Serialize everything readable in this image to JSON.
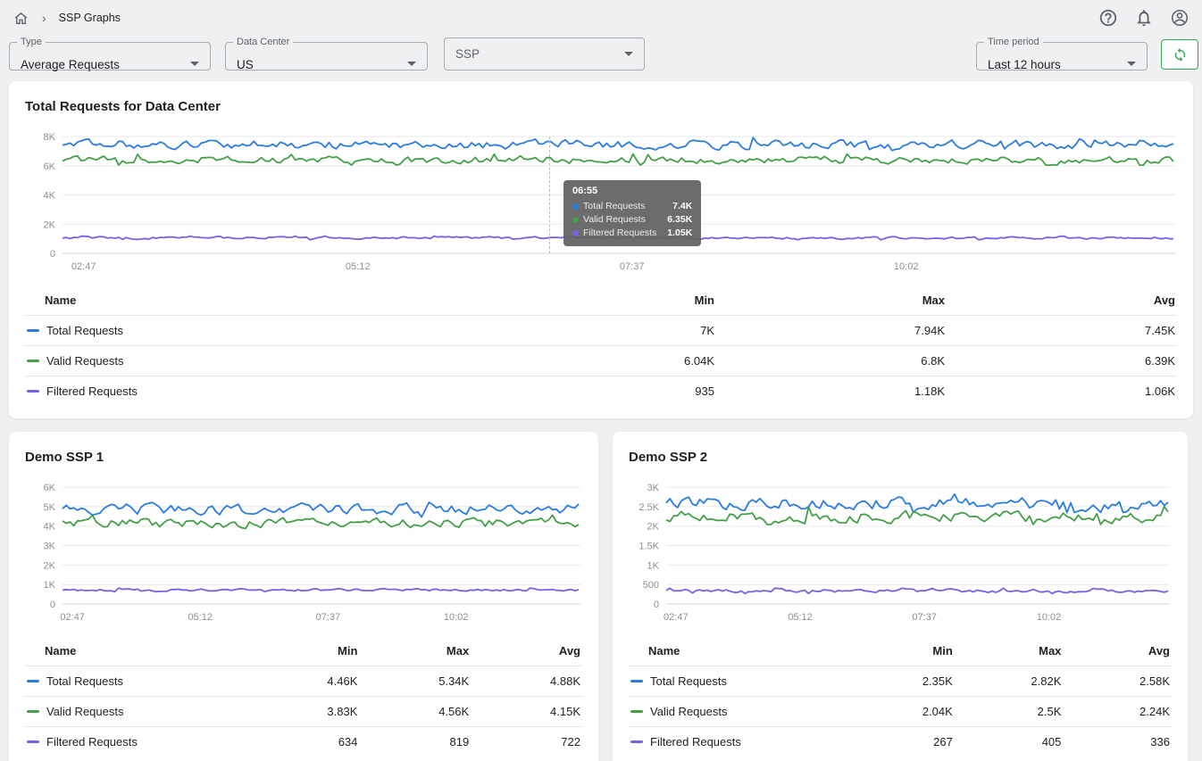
{
  "colors": {
    "blue": "#2b7ce0",
    "green": "#43a047",
    "purple": "#7d5fe3",
    "accent": "#1a73e8",
    "refresh_green": "#34a853",
    "icon_gray": "#5f6368"
  },
  "breadcrumb": {
    "page": "SSP Graphs"
  },
  "filters": {
    "type": {
      "label": "Type",
      "value": "Average Requests"
    },
    "data_center": {
      "label": "Data Center",
      "value": "US"
    },
    "ssp": {
      "placeholder": "SSP"
    },
    "time_period": {
      "label": "Time period",
      "value": "Last 12 hours"
    }
  },
  "table_headers": {
    "name": "Name",
    "min": "Min",
    "max": "Max",
    "avg": "Avg"
  },
  "chart_data": [
    {
      "type": "line",
      "title": "Total Requests for Data Center",
      "x_ticks": [
        "02:47",
        "05:12",
        "07:37",
        "10:02"
      ],
      "y_ticks": [
        {
          "label": "8K",
          "v": 8000
        },
        {
          "label": "6K",
          "v": 6000
        },
        {
          "label": "4K",
          "v": 4000
        },
        {
          "label": "2K",
          "v": 2000
        },
        {
          "label": "0",
          "v": 0
        }
      ],
      "ylim": [
        0,
        8400
      ],
      "grid": true,
      "legend_position": "table-below",
      "series": [
        {
          "name": "Total Requests",
          "color": "blue",
          "min": 7000,
          "max": 7940,
          "avg": 7450
        },
        {
          "name": "Valid Requests",
          "color": "green",
          "min": 6040,
          "max": 6800,
          "avg": 6390
        },
        {
          "name": "Filtered Requests",
          "color": "purple",
          "min": 935,
          "max": 1180,
          "avg": 1060
        }
      ],
      "table": [
        {
          "name": "Total Requests",
          "color": "blue",
          "min": "7K",
          "max": "7.94K",
          "avg": "7.45K"
        },
        {
          "name": "Valid Requests",
          "color": "green",
          "min": "6.04K",
          "max": "6.8K",
          "avg": "6.39K"
        },
        {
          "name": "Filtered Requests",
          "color": "purple",
          "min": "935",
          "max": "1.18K",
          "avg": "1.06K"
        }
      ],
      "hover": {
        "frac": 0.437,
        "time": "06:55",
        "rows": [
          {
            "name": "Total Requests",
            "color": "blue",
            "value": "7.4K"
          },
          {
            "name": "Valid Requests",
            "color": "green",
            "value": "6.35K"
          },
          {
            "name": "Filtered Requests",
            "color": "purple",
            "value": "1.05K"
          }
        ]
      }
    },
    {
      "type": "line",
      "title": "Demo SSP 1",
      "x_ticks": [
        "02:47",
        "05:12",
        "07:37",
        "10:02"
      ],
      "y_ticks": [
        {
          "label": "6K",
          "v": 6000
        },
        {
          "label": "5K",
          "v": 5000
        },
        {
          "label": "4K",
          "v": 4000
        },
        {
          "label": "3K",
          "v": 3000
        },
        {
          "label": "2K",
          "v": 2000
        },
        {
          "label": "1K",
          "v": 1000
        },
        {
          "label": "0",
          "v": 0
        }
      ],
      "ylim": [
        0,
        6300
      ],
      "grid": true,
      "legend_position": "table-below",
      "series": [
        {
          "name": "Total Requests",
          "color": "blue",
          "min": 4460,
          "max": 5340,
          "avg": 4880
        },
        {
          "name": "Valid Requests",
          "color": "green",
          "min": 3830,
          "max": 4560,
          "avg": 4150
        },
        {
          "name": "Filtered Requests",
          "color": "purple",
          "min": 634,
          "max": 819,
          "avg": 722
        }
      ],
      "table": [
        {
          "name": "Total Requests",
          "color": "blue",
          "min": "4.46K",
          "max": "5.34K",
          "avg": "4.88K"
        },
        {
          "name": "Valid Requests",
          "color": "green",
          "min": "3.83K",
          "max": "4.56K",
          "avg": "4.15K"
        },
        {
          "name": "Filtered Requests",
          "color": "purple",
          "min": "634",
          "max": "819",
          "avg": "722"
        }
      ]
    },
    {
      "type": "line",
      "title": "Demo SSP 2",
      "x_ticks": [
        "02:47",
        "05:12",
        "07:37",
        "10:02"
      ],
      "y_ticks": [
        {
          "label": "3K",
          "v": 3000
        },
        {
          "label": "2.5K",
          "v": 2500
        },
        {
          "label": "2K",
          "v": 2000
        },
        {
          "label": "1.5K",
          "v": 1500
        },
        {
          "label": "1K",
          "v": 1000
        },
        {
          "label": "500",
          "v": 500
        },
        {
          "label": "0",
          "v": 0
        }
      ],
      "ylim": [
        0,
        3150
      ],
      "grid": true,
      "legend_position": "table-below",
      "series": [
        {
          "name": "Total Requests",
          "color": "blue",
          "min": 2350,
          "max": 2820,
          "avg": 2580
        },
        {
          "name": "Valid Requests",
          "color": "green",
          "min": 2040,
          "max": 2500,
          "avg": 2240
        },
        {
          "name": "Filtered Requests",
          "color": "purple",
          "min": 267,
          "max": 405,
          "avg": 336
        }
      ],
      "table": [
        {
          "name": "Total Requests",
          "color": "blue",
          "min": "2.35K",
          "max": "2.82K",
          "avg": "2.58K"
        },
        {
          "name": "Valid Requests",
          "color": "green",
          "min": "2.04K",
          "max": "2.5K",
          "avg": "2.24K"
        },
        {
          "name": "Filtered Requests",
          "color": "purple",
          "min": "267",
          "max": "405",
          "avg": "336"
        }
      ]
    }
  ]
}
